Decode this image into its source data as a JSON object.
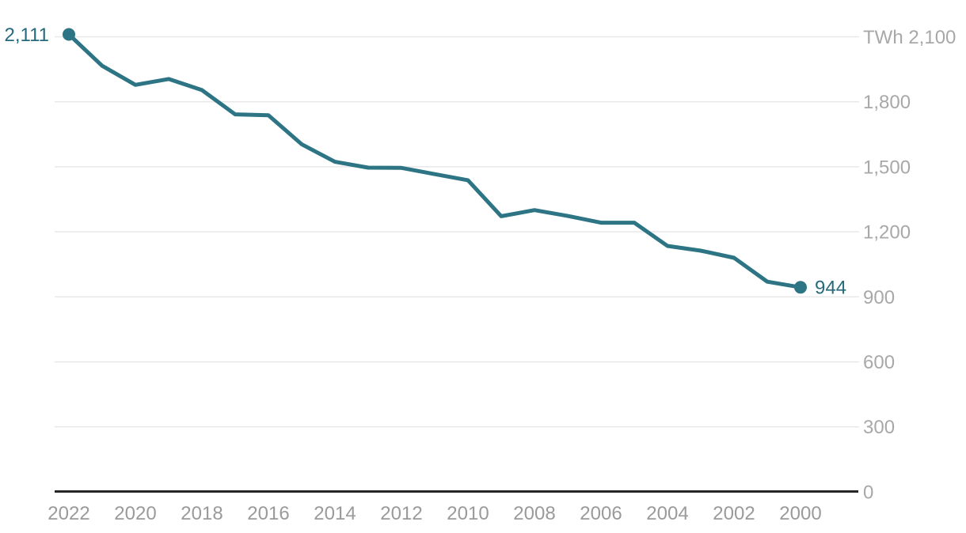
{
  "chart_data": {
    "type": "line",
    "title": "",
    "unit_prefix": "TWh",
    "x_axis_reversed": true,
    "x": [
      2022,
      2021,
      2020,
      2019,
      2018,
      2017,
      2016,
      2015,
      2014,
      2013,
      2012,
      2011,
      2010,
      2009,
      2008,
      2007,
      2006,
      2005,
      2004,
      2003,
      2002,
      2001,
      2000
    ],
    "series": [
      {
        "name": "TWh",
        "values": [
          2111,
          1966,
          1878,
          1905,
          1854,
          1742,
          1738,
          1604,
          1523,
          1496,
          1495,
          1466,
          1438,
          1272,
          1300,
          1273,
          1242,
          1242,
          1135,
          1113,
          1080,
          970,
          944
        ]
      }
    ],
    "value_labels": {
      "first": "2,111",
      "last": "944"
    },
    "y_ticks": [
      {
        "v": 2100,
        "label": "TWh 2,100"
      },
      {
        "v": 1800,
        "label": "1,800"
      },
      {
        "v": 1500,
        "label": "1,500"
      },
      {
        "v": 1200,
        "label": "1,200"
      },
      {
        "v": 900,
        "label": "900"
      },
      {
        "v": 600,
        "label": "600"
      },
      {
        "v": 300,
        "label": "300"
      },
      {
        "v": 0,
        "label": "0"
      }
    ],
    "x_ticks": [
      {
        "year": 2022,
        "label": "2022"
      },
      {
        "year": 2020,
        "label": "2020"
      },
      {
        "year": 2018,
        "label": "2018"
      },
      {
        "year": 2016,
        "label": "2016"
      },
      {
        "year": 2014,
        "label": "2014"
      },
      {
        "year": 2012,
        "label": "2012"
      },
      {
        "year": 2010,
        "label": "2010"
      },
      {
        "year": 2008,
        "label": "2008"
      },
      {
        "year": 2006,
        "label": "2006"
      },
      {
        "year": 2004,
        "label": "2004"
      },
      {
        "year": 2002,
        "label": "2002"
      },
      {
        "year": 2000,
        "label": "2000"
      }
    ],
    "ylim": [
      0,
      2100
    ],
    "grid": true,
    "legend": "none",
    "colors": {
      "line": "#2d7484",
      "marker": "#2d7484",
      "value_label": "#266a7d",
      "y_tick_label": "#a8a8a8",
      "x_tick_label": "#9a9a9a",
      "gridline": "#e8e8e8",
      "axis_line": "#262626",
      "background": "#ffffff"
    }
  }
}
